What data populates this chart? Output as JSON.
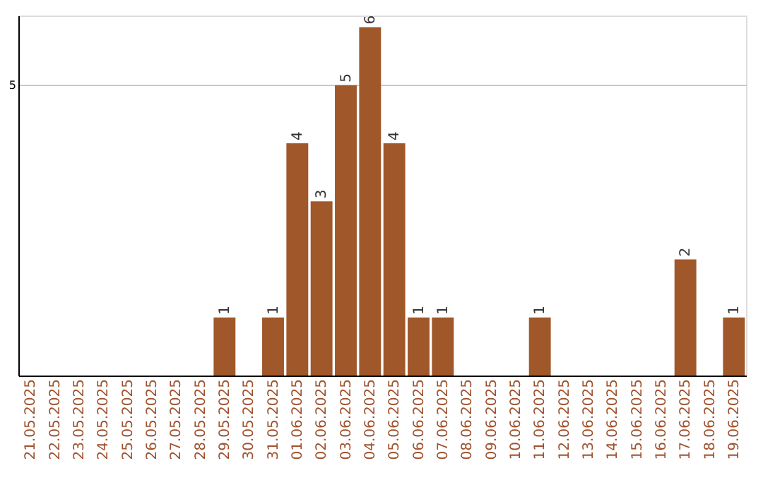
{
  "chart_data": {
    "type": "bar",
    "categories": [
      "21.05.2025",
      "22.05.2025",
      "23.05.2025",
      "24.05.2025",
      "25.05.2025",
      "26.05.2025",
      "27.05.2025",
      "28.05.2025",
      "29.05.2025",
      "30.05.2025",
      "31.05.2025",
      "01.06.2025",
      "02.06.2025",
      "03.06.2025",
      "04.06.2025",
      "05.06.2025",
      "06.06.2025",
      "07.06.2025",
      "08.06.2025",
      "09.06.2025",
      "10.06.2025",
      "11.06.2025",
      "12.06.2025",
      "13.06.2025",
      "14.06.2025",
      "15.06.2025",
      "16.06.2025",
      "17.06.2025",
      "18.06.2025",
      "19.06.2025"
    ],
    "values": [
      0,
      0,
      0,
      0,
      0,
      0,
      0,
      0,
      1,
      0,
      1,
      4,
      3,
      5,
      6,
      4,
      1,
      1,
      0,
      0,
      0,
      1,
      0,
      0,
      0,
      0,
      0,
      2,
      0,
      1
    ],
    "value_labels": [
      null,
      null,
      null,
      null,
      null,
      null,
      null,
      null,
      "1",
      null,
      "1",
      "4",
      "3",
      "5",
      "6",
      "4",
      "1",
      "1",
      null,
      null,
      null,
      "1",
      null,
      null,
      null,
      null,
      null,
      "2",
      null,
      "1"
    ],
    "color": "#a0572a",
    "ylim": [
      0,
      6.2
    ],
    "yticks": [
      5
    ],
    "grid": "y"
  }
}
